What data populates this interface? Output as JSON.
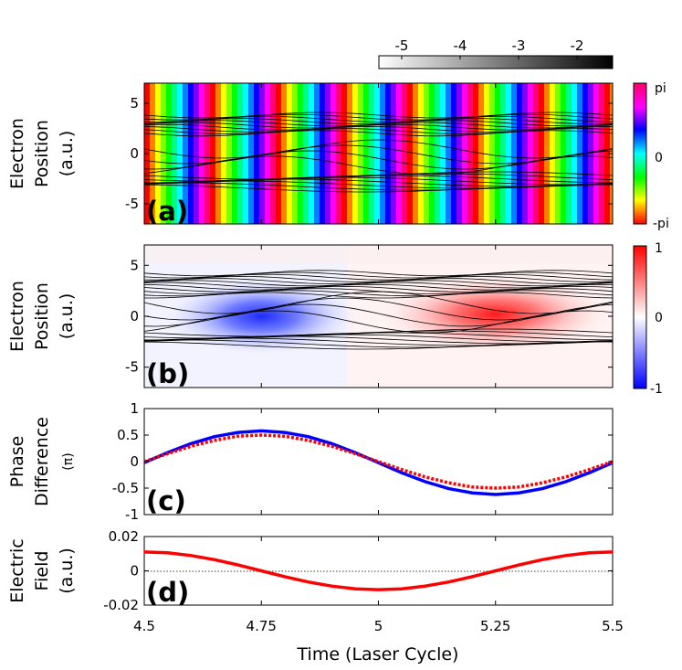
{
  "colorbar_top": {
    "ticks": [
      "-5",
      "-4",
      "-3",
      "-2"
    ]
  },
  "colorbar_a": {
    "top": "pi",
    "mid": "0",
    "bottom": "-pi"
  },
  "colorbar_b": {
    "top": "1",
    "mid": "0",
    "bottom": "-1"
  },
  "xlabel": "Time (Laser Cycle)",
  "x_ticks": [
    "4.5",
    "4.75",
    "5",
    "5.25",
    "5.5"
  ],
  "chart_data": [
    {
      "panel": "a",
      "type": "heatmap",
      "label": "(a)",
      "ylabel_lines": [
        "Electron",
        "Position",
        "(a.u.)"
      ],
      "xlim": [
        4.5,
        5.5
      ],
      "ylim": [
        -7,
        7
      ],
      "yticks": [
        {
          "v": 5,
          "t": "5"
        },
        {
          "v": 0,
          "t": "0"
        },
        {
          "v": -5,
          "t": "-5"
        }
      ],
      "colorbar_range": [
        "-pi",
        "pi"
      ]
    },
    {
      "panel": "b",
      "type": "heatmap",
      "label": "(b)",
      "ylabel_lines": [
        "Electron",
        "Position",
        "(a.u.)"
      ],
      "xlim": [
        4.5,
        5.5
      ],
      "ylim": [
        -7,
        7
      ],
      "yticks": [
        {
          "v": 5,
          "t": "5"
        },
        {
          "v": 0,
          "t": "0"
        },
        {
          "v": -5,
          "t": "-5"
        }
      ],
      "colorbar_range": [
        -1,
        1
      ],
      "blobs": [
        {
          "x": 4.75,
          "y": 0.0,
          "value": -0.75
        },
        {
          "x": 5.25,
          "y": 0.2,
          "value": 0.9
        }
      ]
    },
    {
      "panel": "c",
      "type": "line",
      "label": "(c)",
      "ylabel_lines": [
        "Phase",
        "Difference",
        "(π)"
      ],
      "xlim": [
        4.5,
        5.5
      ],
      "ylim": [
        -1,
        1
      ],
      "yticks": [
        {
          "v": 1,
          "t": "1"
        },
        {
          "v": 0.5,
          "t": "0.5"
        },
        {
          "v": 0,
          "t": "0"
        },
        {
          "v": -0.5,
          "t": "-0.5"
        },
        {
          "v": -1,
          "t": "-1"
        }
      ],
      "series": [
        {
          "name": "blue solid",
          "color": "#0000ff",
          "style": "solid",
          "x": [
            4.5,
            4.55,
            4.6,
            4.65,
            4.7,
            4.75,
            4.8,
            4.85,
            4.9,
            4.95,
            5.0,
            5.05,
            5.1,
            5.15,
            5.2,
            5.25,
            5.3,
            5.35,
            5.4,
            5.45,
            5.5
          ],
          "y": [
            -0.02,
            0.17,
            0.34,
            0.47,
            0.55,
            0.58,
            0.55,
            0.47,
            0.34,
            0.17,
            -0.02,
            -0.21,
            -0.38,
            -0.51,
            -0.59,
            -0.62,
            -0.59,
            -0.51,
            -0.38,
            -0.21,
            -0.02
          ]
        },
        {
          "name": "red dotted",
          "color": "#ff0000",
          "style": "dotted",
          "x": [
            4.5,
            4.55,
            4.6,
            4.65,
            4.7,
            4.75,
            4.8,
            4.85,
            4.9,
            4.95,
            5.0,
            5.05,
            5.1,
            5.15,
            5.2,
            5.25,
            5.3,
            5.35,
            5.4,
            5.45,
            5.5
          ],
          "y": [
            0.0,
            0.15,
            0.29,
            0.4,
            0.48,
            0.5,
            0.48,
            0.4,
            0.29,
            0.15,
            0.0,
            -0.15,
            -0.29,
            -0.4,
            -0.48,
            -0.5,
            -0.48,
            -0.4,
            -0.29,
            -0.15,
            0.0
          ]
        }
      ]
    },
    {
      "panel": "d",
      "type": "line",
      "label": "(d)",
      "ylabel_lines": [
        "Electric",
        "Field",
        "(a.u.)"
      ],
      "xlim": [
        4.5,
        5.5
      ],
      "ylim": [
        -0.02,
        0.02
      ],
      "yticks": [
        {
          "v": 0.02,
          "t": "0.02"
        },
        {
          "v": 0,
          "t": "0"
        },
        {
          "v": -0.02,
          "t": "-0.02"
        }
      ],
      "series": [
        {
          "name": "field",
          "color": "#ff0000",
          "style": "solid",
          "x": [
            4.5,
            4.55,
            4.6,
            4.65,
            4.7,
            4.75,
            4.8,
            4.85,
            4.9,
            4.95,
            5.0,
            5.05,
            5.1,
            5.15,
            5.2,
            5.25,
            5.3,
            5.35,
            5.4,
            5.45,
            5.5
          ],
          "y": [
            0.011,
            0.0105,
            0.0089,
            0.0065,
            0.0034,
            0.0,
            -0.0034,
            -0.0065,
            -0.0089,
            -0.0105,
            -0.011,
            -0.0105,
            -0.0089,
            -0.0065,
            -0.0034,
            0.0,
            0.0034,
            0.0065,
            0.0089,
            0.0105,
            0.011
          ]
        }
      ]
    }
  ]
}
